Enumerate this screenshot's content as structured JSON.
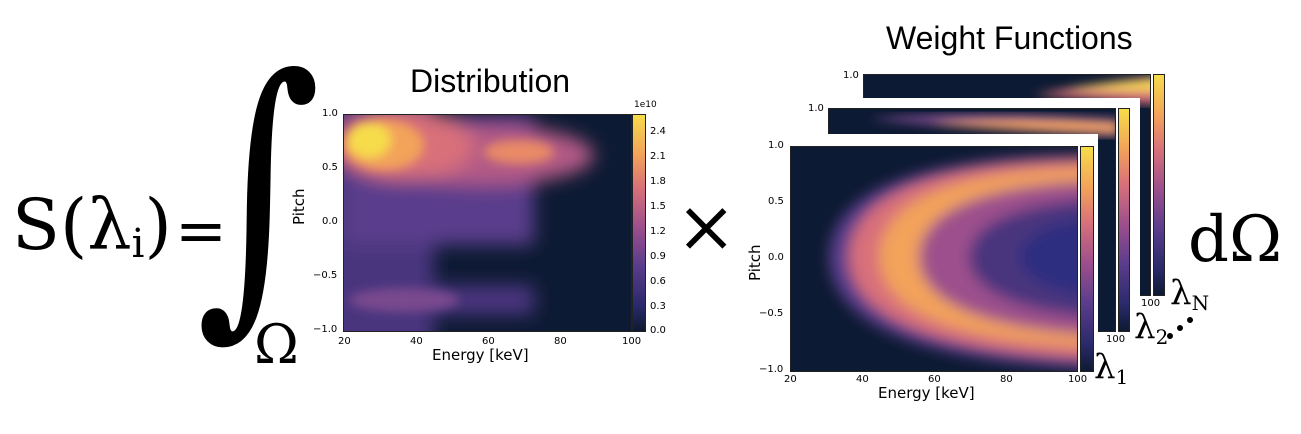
{
  "equation": {
    "lhs_S": "S(",
    "lhs_lambda": "λ",
    "lhs_sub": "i",
    "lhs_close": ")",
    "equals": "=",
    "integral": "∫",
    "domain": "Ω",
    "times": "×",
    "differential": "dΩ"
  },
  "distribution": {
    "title": "Distribution",
    "xlabel": "Energy [keV]",
    "ylabel": "Pitch",
    "xticks": [
      "20",
      "40",
      "60",
      "80",
      "100"
    ],
    "yticks": [
      "1.0",
      "0.5",
      "0.0",
      "−0.5",
      "−1.0"
    ],
    "cbar_exponent": "1e10",
    "cbar_ticks": [
      "2.4",
      "2.1",
      "1.8",
      "1.5",
      "1.2",
      "0.9",
      "0.6",
      "0.3",
      "0.0"
    ]
  },
  "weights": {
    "title": "Weight Functions",
    "xlabel": "Energy [keV]",
    "ylabel": "Pitch",
    "xticks": [
      "20",
      "40",
      "60",
      "80",
      "100"
    ],
    "yticks": [
      "1.0",
      "0.5",
      "0.0",
      "−0.5",
      "−1.0"
    ],
    "back_ytick": "1.0",
    "mid_ytick": "1.0",
    "back_xtick": "100",
    "mid_xtick": "100",
    "stack_labels": {
      "first": {
        "base": "λ",
        "sub": "1"
      },
      "second": {
        "base": "λ",
        "sub": "2"
      },
      "last": {
        "base": "λ",
        "sub": "N"
      }
    }
  },
  "colors": {
    "low": "#0d1a33",
    "mid": "#9c4f8c",
    "high": "#f6dc4b"
  }
}
